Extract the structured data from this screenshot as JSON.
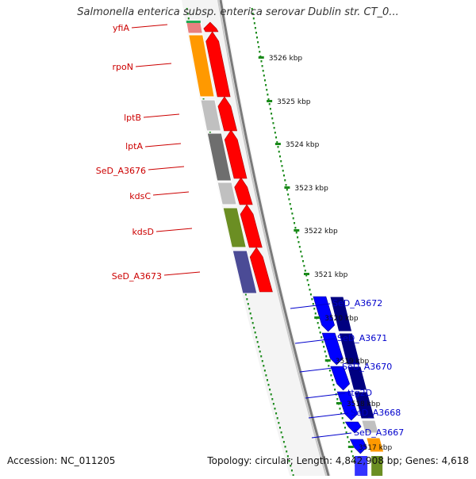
{
  "map": {
    "title": "Salmonella enterica subsp. enterica serovar Dublin str. CT_0...",
    "accession_text": "Accession: NC_011205",
    "summary_text": "Topology: circular; Length: 4,842,908 bp; Genes: 4,618",
    "ruler_unit": "kbp",
    "ruler_ticks": [
      3526,
      3525,
      3524,
      3523,
      3522,
      3521,
      3520,
      3519,
      3518,
      3517
    ],
    "ruler_label_color": "#111111"
  },
  "colors": {
    "forward_strand_arrow": "#ff0000",
    "reverse_strand_arrow": "#0000ff",
    "cog_orange": "#ff9900",
    "cog_light_gray": "#c0c0c0",
    "cog_dark_gray": "#6e6e6e",
    "cog_olive": "#6b8e23",
    "cog_slate": "#4b4b96",
    "cog_navy": "#000080",
    "cog_pink": "#e88080",
    "label_forward": "#cc0000",
    "label_reverse": "#0000cc",
    "tick_color": "#1a8a1a",
    "backbone": "#7a7a7a"
  },
  "forward_genes": [
    {
      "name": "yfiA",
      "cog": "cog_pink"
    },
    {
      "name": "rpoN",
      "cog": "cog_orange"
    },
    {
      "name": "lptB",
      "cog": "cog_light_gray"
    },
    {
      "name": "lptA",
      "cog": "cog_dark_gray"
    },
    {
      "name": "SeD_A3676",
      "cog": "cog_dark_gray"
    },
    {
      "name": "kdsC",
      "cog": "cog_light_gray"
    },
    {
      "name": "kdsD",
      "cog": "cog_olive"
    },
    {
      "name": "SeD_A3673",
      "cog": "cog_slate"
    }
  ],
  "reverse_genes": [
    {
      "name": "SeD_A3672",
      "cog": "cog_navy"
    },
    {
      "name": "SeD_A3671",
      "cog": "cog_navy"
    },
    {
      "name": "SeD_A3670",
      "cog": "cog_navy"
    },
    {
      "name": "ttg2D",
      "cog": "cog_navy"
    },
    {
      "name": "SeD_A3668",
      "cog": "cog_light_gray"
    },
    {
      "name": "SeD_A3667",
      "cog": "cog_orange"
    }
  ]
}
